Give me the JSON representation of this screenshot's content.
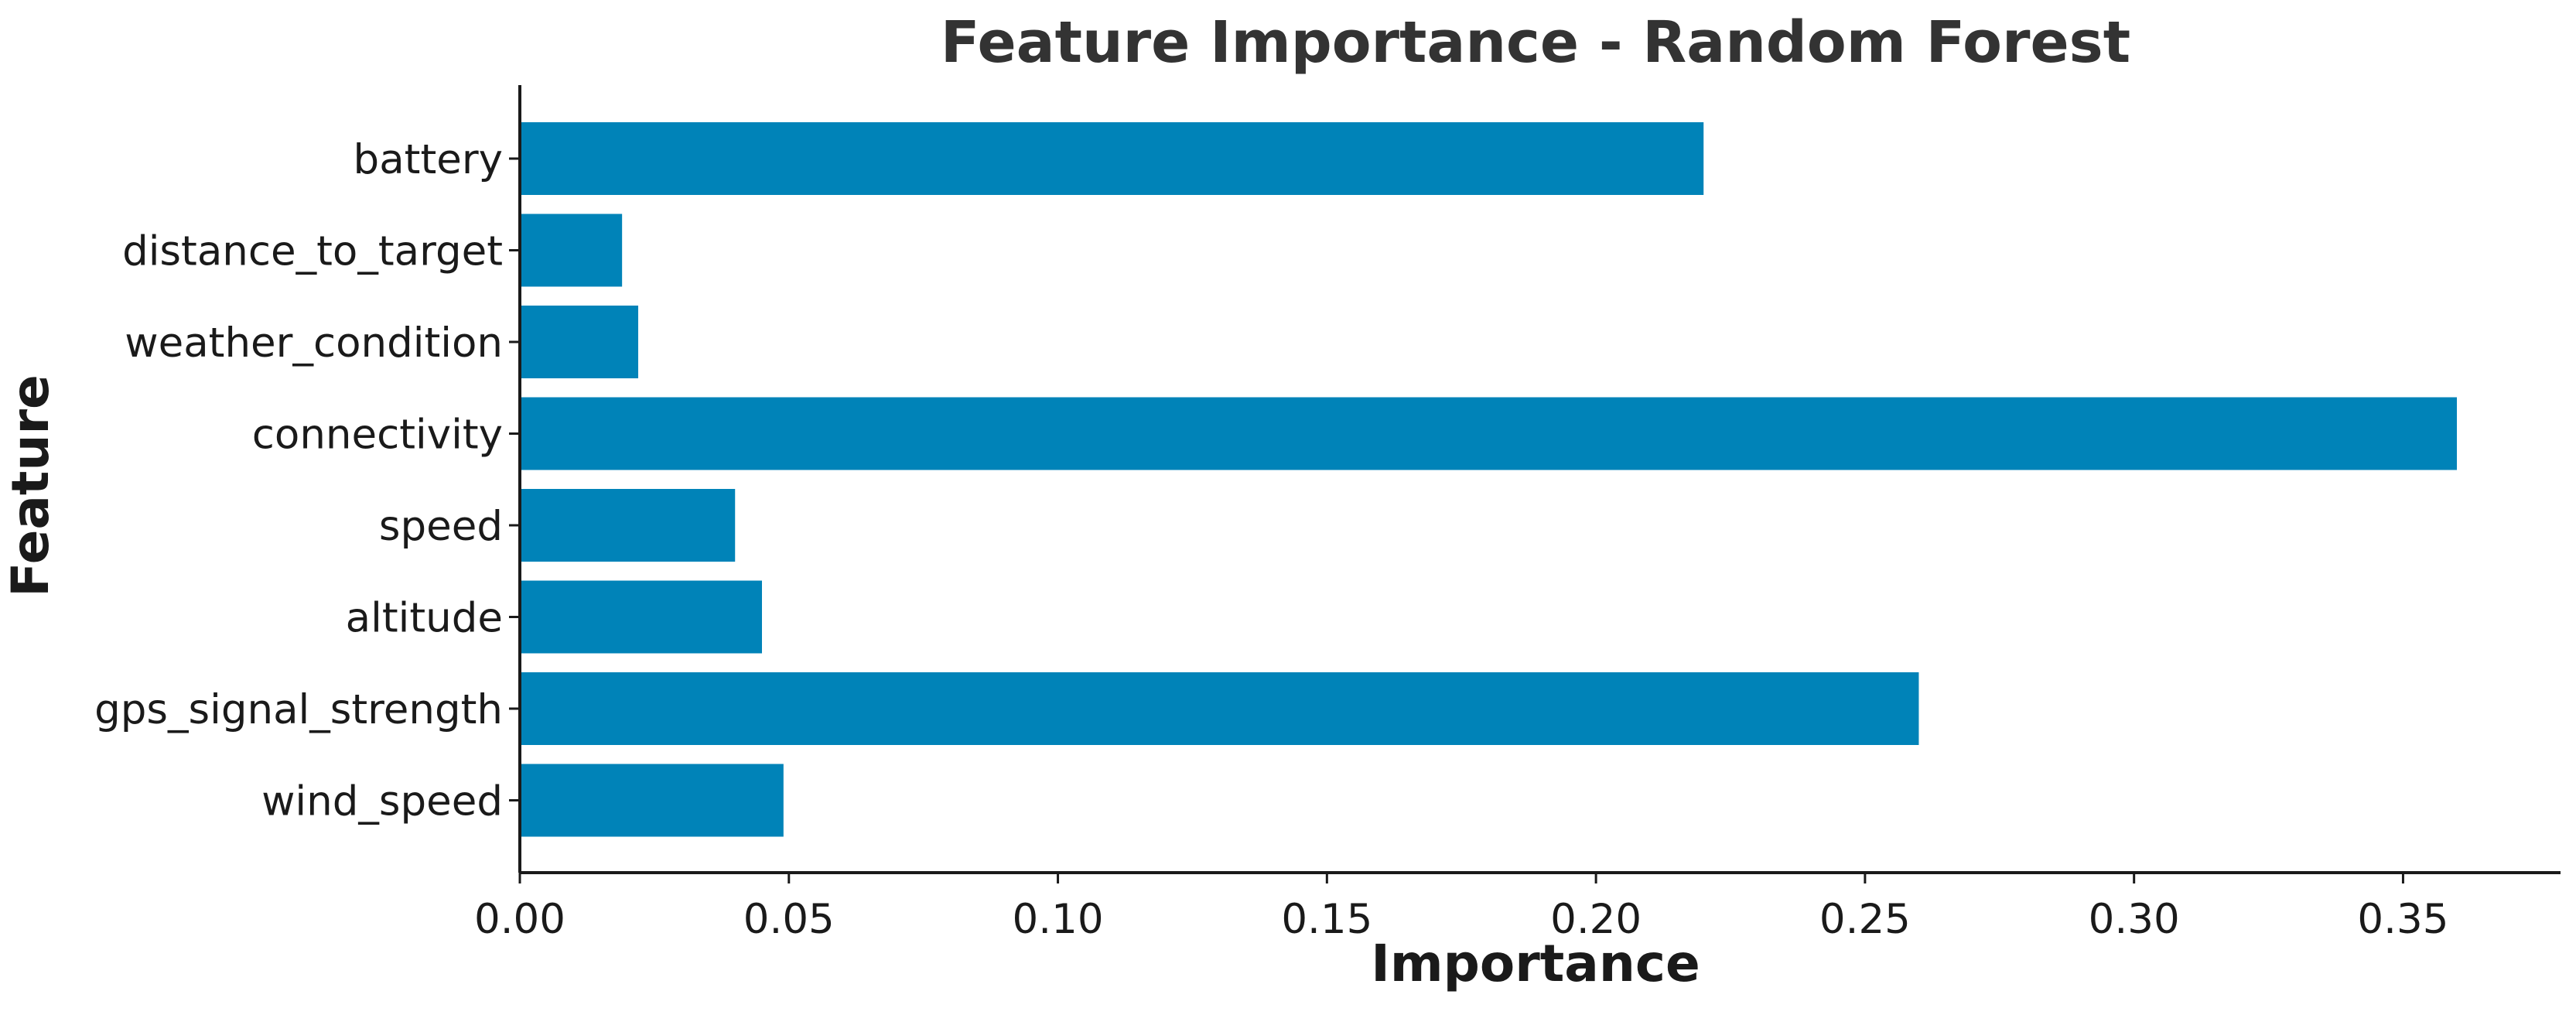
{
  "chart_data": {
    "type": "bar",
    "orientation": "horizontal",
    "title": "Feature Importance - Random Forest",
    "xlabel": "Importance",
    "ylabel": "Feature",
    "categories": [
      "battery",
      "distance_to_target",
      "weather_condition",
      "connectivity",
      "speed",
      "altitude",
      "gps_signal_strength",
      "wind_speed"
    ],
    "values": [
      0.22,
      0.019,
      0.022,
      0.36,
      0.04,
      0.045,
      0.26,
      0.049
    ],
    "xlim": [
      0,
      0.38
    ],
    "xticks": [
      0.0,
      0.05,
      0.1,
      0.15,
      0.2,
      0.25,
      0.3,
      0.35
    ],
    "xtick_labels": [
      "0.00",
      "0.05",
      "0.10",
      "0.15",
      "0.20",
      "0.25",
      "0.30",
      "0.35"
    ],
    "bar_color": "#0083b8",
    "grid": false,
    "legend": false
  }
}
